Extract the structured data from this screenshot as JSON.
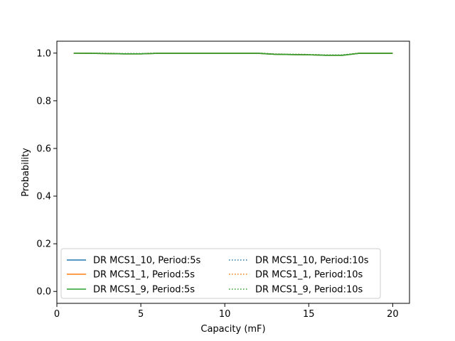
{
  "chart_data": {
    "type": "line",
    "title": "",
    "xlabel": "Capacity (mF)",
    "ylabel": "Probability",
    "xlim": [
      0,
      21
    ],
    "ylim": [
      -0.05,
      1.05
    ],
    "xticks": [
      0,
      5,
      10,
      15,
      20
    ],
    "yticks": [
      0.0,
      0.2,
      0.4,
      0.6,
      0.8,
      1.0
    ],
    "x_tick_labels": [
      "0",
      "5",
      "10",
      "15",
      "20"
    ],
    "y_tick_labels": [
      "0.0",
      "0.2",
      "0.4",
      "0.6",
      "0.8",
      "1.0"
    ],
    "grid": false,
    "legend_position": "lower-center",
    "legend_columns": 2,
    "x": [
      1,
      2,
      3,
      4,
      5,
      6,
      7,
      8,
      9,
      10,
      11,
      12,
      13,
      14,
      15,
      16,
      17,
      18,
      19,
      20
    ],
    "series": [
      {
        "name": "DR MCS1_10, Period:5s",
        "color": "#1f77b4",
        "linestyle": "solid",
        "values": [
          1.0,
          0.999,
          0.998,
          0.997,
          0.997,
          0.999,
          0.999,
          0.999,
          0.999,
          0.999,
          0.999,
          0.999,
          0.995,
          0.994,
          0.993,
          0.991,
          0.991,
          0.999,
          0.999,
          0.999
        ]
      },
      {
        "name": "DR MCS1_1, Period:5s",
        "color": "#ff7f0e",
        "linestyle": "solid",
        "values": [
          1.0,
          0.999,
          0.998,
          0.997,
          0.997,
          0.999,
          0.999,
          0.999,
          0.999,
          0.999,
          0.999,
          0.999,
          0.995,
          0.994,
          0.993,
          0.991,
          0.991,
          0.999,
          0.999,
          0.999
        ]
      },
      {
        "name": "DR MCS1_9, Period:5s",
        "color": "#2ca02c",
        "linestyle": "solid",
        "values": [
          1.0,
          0.999,
          0.998,
          0.997,
          0.997,
          0.999,
          0.999,
          0.999,
          0.999,
          0.999,
          0.999,
          0.999,
          0.995,
          0.994,
          0.993,
          0.991,
          0.991,
          0.999,
          0.999,
          0.999
        ]
      },
      {
        "name": "DR MCS1_10, Period:10s",
        "color": "#1f77b4",
        "linestyle": "dotted",
        "values": [
          1.0,
          1.0,
          0.999,
          0.998,
          0.998,
          1.0,
          1.0,
          1.0,
          1.0,
          1.0,
          1.0,
          1.0,
          0.996,
          0.995,
          0.994,
          0.992,
          0.992,
          1.0,
          1.0,
          1.0
        ]
      },
      {
        "name": "DR MCS1_1, Period:10s",
        "color": "#ff7f0e",
        "linestyle": "dotted",
        "values": [
          1.0,
          1.0,
          0.999,
          0.998,
          0.998,
          1.0,
          1.0,
          1.0,
          1.0,
          1.0,
          1.0,
          1.0,
          0.996,
          0.995,
          0.994,
          0.992,
          0.992,
          1.0,
          1.0,
          1.0
        ]
      },
      {
        "name": "DR MCS1_9, Period:10s",
        "color": "#2ca02c",
        "linestyle": "dotted",
        "values": [
          1.0,
          1.0,
          0.999,
          0.998,
          0.998,
          1.0,
          1.0,
          1.0,
          1.0,
          1.0,
          1.0,
          1.0,
          0.996,
          0.995,
          0.994,
          0.992,
          0.992,
          1.0,
          1.0,
          1.0
        ]
      }
    ]
  }
}
